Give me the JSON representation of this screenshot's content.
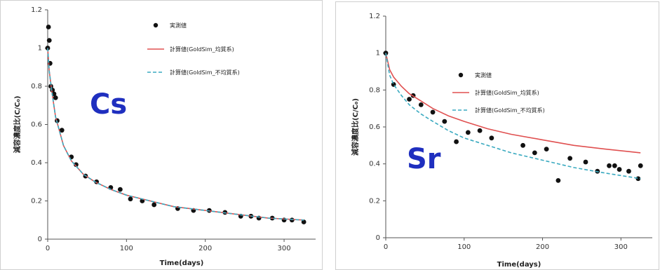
{
  "chart_data": [
    {
      "type": "scatter",
      "label": "Cs",
      "xlabel": "Time(days)",
      "ylabel": "減容濃度比(C/C₀)",
      "xlim": [
        0,
        340
      ],
      "ylim": [
        0,
        1.2
      ],
      "xticks": [
        "0",
        "100",
        "200",
        "300"
      ],
      "yticks": [
        "0",
        "0.2",
        "0.4",
        "0.6",
        "0.8",
        "1",
        "1.2"
      ],
      "legend": [
        "実測値",
        "計算値(GoldSim_均質系)",
        "計算値(GoldSim_不均質系)"
      ],
      "legend_placement": "top-right",
      "series": [
        {
          "name": "実測値",
          "kind": "points",
          "color": "#111111",
          "x": [
            0,
            1,
            2,
            3,
            4,
            6,
            8,
            10,
            12,
            18,
            30,
            36,
            48,
            62,
            80,
            92,
            105,
            120,
            135,
            165,
            185,
            205,
            225,
            245,
            258,
            268,
            285,
            300,
            310,
            325
          ],
          "y": [
            1.0,
            1.11,
            1.04,
            0.92,
            0.8,
            0.78,
            0.76,
            0.74,
            0.62,
            0.57,
            0.43,
            0.39,
            0.33,
            0.3,
            0.27,
            0.26,
            0.21,
            0.2,
            0.18,
            0.16,
            0.15,
            0.15,
            0.14,
            0.12,
            0.12,
            0.11,
            0.11,
            0.1,
            0.1,
            0.09
          ]
        },
        {
          "name": "計算値(GoldSim_均質系)",
          "kind": "line",
          "color": "#e05050",
          "x": [
            0,
            2,
            5,
            10,
            20,
            30,
            45,
            60,
            80,
            100,
            130,
            160,
            200,
            240,
            280,
            325
          ],
          "y": [
            1.0,
            0.88,
            0.78,
            0.64,
            0.49,
            0.41,
            0.34,
            0.3,
            0.26,
            0.23,
            0.2,
            0.17,
            0.15,
            0.13,
            0.11,
            0.1
          ]
        },
        {
          "name": "計算値(GoldSim_不均質系)",
          "kind": "dashed",
          "color": "#3aaac0",
          "x": [
            0,
            2,
            5,
            10,
            20,
            30,
            45,
            60,
            80,
            100,
            130,
            160,
            200,
            240,
            280,
            325
          ],
          "y": [
            1.0,
            0.88,
            0.78,
            0.64,
            0.49,
            0.41,
            0.34,
            0.3,
            0.26,
            0.23,
            0.2,
            0.17,
            0.15,
            0.13,
            0.11,
            0.1
          ]
        }
      ]
    },
    {
      "type": "scatter",
      "label": "Sr",
      "xlabel": "Time(days)",
      "ylabel": "減容濃度比(C/C₀)",
      "xlim": [
        0,
        340
      ],
      "ylim": [
        0,
        1.2
      ],
      "xticks": [
        "0",
        "100",
        "200",
        "300"
      ],
      "yticks": [
        "0",
        "0.2",
        "0.4",
        "0.6",
        "0.8",
        "1",
        "1.2"
      ],
      "legend": [
        "実測値",
        "計算値(GoldSim_均質系)",
        "計算値(GoldSim_不均質系)"
      ],
      "legend_placement": "top-right",
      "series": [
        {
          "name": "実測値",
          "kind": "points",
          "color": "#111111",
          "x": [
            0,
            10,
            30,
            35,
            45,
            60,
            75,
            90,
            105,
            120,
            135,
            175,
            190,
            205,
            220,
            235,
            255,
            270,
            285,
            292,
            298,
            310,
            322,
            325
          ],
          "y": [
            1.0,
            0.83,
            0.75,
            0.77,
            0.72,
            0.68,
            0.63,
            0.52,
            0.57,
            0.58,
            0.54,
            0.5,
            0.46,
            0.48,
            0.31,
            0.43,
            0.41,
            0.36,
            0.39,
            0.39,
            0.37,
            0.36,
            0.32,
            0.39
          ]
        },
        {
          "name": "計算値(GoldSim_均質系)",
          "kind": "line",
          "color": "#e05050",
          "x": [
            0,
            5,
            10,
            20,
            30,
            45,
            60,
            80,
            100,
            130,
            160,
            200,
            240,
            280,
            325
          ],
          "y": [
            1.0,
            0.91,
            0.87,
            0.82,
            0.78,
            0.74,
            0.7,
            0.66,
            0.63,
            0.59,
            0.56,
            0.53,
            0.5,
            0.48,
            0.46
          ]
        },
        {
          "name": "計算値(GoldSim_不均質系)",
          "kind": "dashed",
          "color": "#3aaac0",
          "x": [
            0,
            5,
            10,
            20,
            30,
            45,
            60,
            80,
            100,
            130,
            160,
            200,
            240,
            280,
            325
          ],
          "y": [
            1.0,
            0.88,
            0.83,
            0.77,
            0.72,
            0.67,
            0.63,
            0.58,
            0.54,
            0.5,
            0.46,
            0.42,
            0.38,
            0.35,
            0.32
          ]
        }
      ]
    }
  ]
}
